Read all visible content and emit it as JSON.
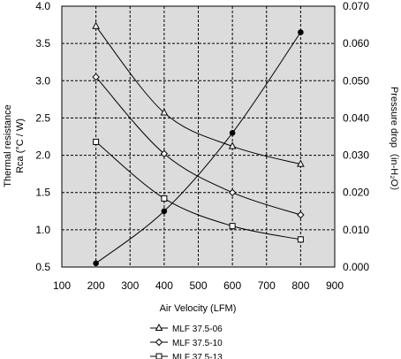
{
  "chart_data": {
    "type": "line",
    "xlabel": "Air Velocity (LFM)",
    "ylabel": [
      "Thermal resistance",
      "Rca (°C / W)"
    ],
    "y2label": "Pressure drop（in-H₂O）",
    "xlim": [
      100,
      900
    ],
    "ylim": [
      0.5,
      4.0
    ],
    "y2lim": [
      0.0,
      0.07
    ],
    "x_ticks": [
      "100",
      "200",
      "300",
      "400",
      "500",
      "600",
      "700",
      "800",
      "900"
    ],
    "y_ticks": [
      "0.5",
      "1.0",
      "1.5",
      "2.0",
      "2.5",
      "3.0",
      "3.5",
      "4.0"
    ],
    "y2_ticks": [
      "0.000",
      "0.010",
      "0.020",
      "0.030",
      "0.040",
      "0.050",
      "0.060",
      "0.070"
    ],
    "grid": true,
    "legend_position": "bottom",
    "series": [
      {
        "name": "MLF 37.5-06",
        "marker": "triangle",
        "axis": "left",
        "x": [
          200,
          400,
          600,
          800
        ],
        "y": [
          3.73,
          2.57,
          2.12,
          1.88
        ]
      },
      {
        "name": "MLF 37.5-10",
        "marker": "diamond",
        "axis": "left",
        "x": [
          200,
          400,
          600,
          800
        ],
        "y": [
          3.05,
          2.02,
          1.5,
          1.2
        ]
      },
      {
        "name": "MLF 37.5-13",
        "marker": "square",
        "axis": "left",
        "x": [
          200,
          400,
          600,
          800
        ],
        "y": [
          2.18,
          1.42,
          1.05,
          0.87
        ]
      },
      {
        "marker": "circle-filled",
        "axis": "right",
        "x": [
          200,
          400,
          600,
          800
        ],
        "y": [
          0.001,
          0.015,
          0.036,
          0.063
        ]
      }
    ],
    "colors": {
      "plot_bg": "#dcdcdc",
      "line": "#000000",
      "grid": "#000000"
    }
  }
}
